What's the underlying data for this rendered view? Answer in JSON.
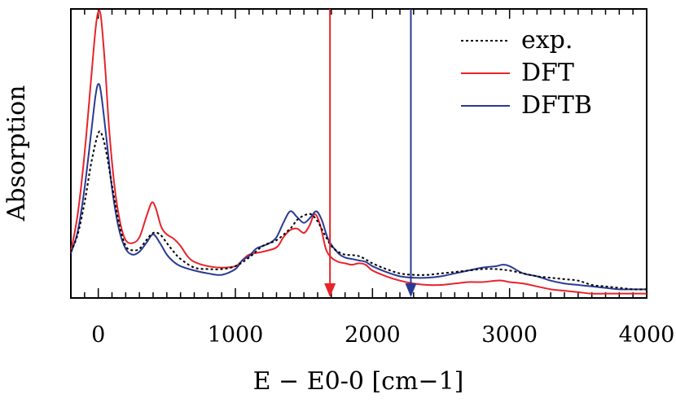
{
  "chart_data": {
    "type": "line",
    "xlabel": "E − E0-0 [cm−1]",
    "ylabel": "Absorption",
    "xlim": [
      -200,
      4000
    ],
    "ylim": [
      0,
      1
    ],
    "x_ticks": [
      0,
      1000,
      2000,
      3000,
      4000
    ],
    "x_tick_labels": [
      "0",
      "1000",
      "2000",
      "3000",
      "4000"
    ],
    "grid": false,
    "legend_position": "top-right",
    "legend": [
      "exp.",
      "DFT",
      "DFTB"
    ],
    "series": [
      {
        "name": "exp.",
        "color": "#000000",
        "style": "dotted",
        "points": [
          [
            -200,
            0.16
          ],
          [
            -150,
            0.22
          ],
          [
            -100,
            0.33
          ],
          [
            -50,
            0.47
          ],
          [
            0,
            0.57
          ],
          [
            30,
            0.56
          ],
          [
            60,
            0.5
          ],
          [
            100,
            0.39
          ],
          [
            150,
            0.26
          ],
          [
            200,
            0.18
          ],
          [
            250,
            0.165
          ],
          [
            300,
            0.17
          ],
          [
            350,
            0.2
          ],
          [
            400,
            0.225
          ],
          [
            450,
            0.22
          ],
          [
            500,
            0.19
          ],
          [
            550,
            0.16
          ],
          [
            600,
            0.135
          ],
          [
            700,
            0.105
          ],
          [
            800,
            0.1
          ],
          [
            900,
            0.1
          ],
          [
            1000,
            0.11
          ],
          [
            1100,
            0.14
          ],
          [
            1200,
            0.18
          ],
          [
            1300,
            0.2
          ],
          [
            1400,
            0.24
          ],
          [
            1450,
            0.27
          ],
          [
            1500,
            0.285
          ],
          [
            1550,
            0.29
          ],
          [
            1600,
            0.265
          ],
          [
            1650,
            0.22
          ],
          [
            1700,
            0.18
          ],
          [
            1750,
            0.16
          ],
          [
            1800,
            0.15
          ],
          [
            1900,
            0.145
          ],
          [
            2000,
            0.12
          ],
          [
            2100,
            0.1
          ],
          [
            2200,
            0.085
          ],
          [
            2300,
            0.08
          ],
          [
            2400,
            0.08
          ],
          [
            2500,
            0.085
          ],
          [
            2600,
            0.09
          ],
          [
            2700,
            0.095
          ],
          [
            2800,
            0.1
          ],
          [
            2900,
            0.1
          ],
          [
            3000,
            0.095
          ],
          [
            3100,
            0.085
          ],
          [
            3200,
            0.075
          ],
          [
            3300,
            0.07
          ],
          [
            3400,
            0.065
          ],
          [
            3500,
            0.06
          ],
          [
            3600,
            0.045
          ],
          [
            3700,
            0.04
          ],
          [
            3800,
            0.035
          ],
          [
            3900,
            0.03
          ],
          [
            4000,
            0.03
          ]
        ]
      },
      {
        "name": "DFT",
        "color": "#e8232a",
        "style": "solid",
        "points": [
          [
            -200,
            0.16
          ],
          [
            -150,
            0.29
          ],
          [
            -100,
            0.5
          ],
          [
            -50,
            0.77
          ],
          [
            -20,
            0.93
          ],
          [
            0,
            0.99
          ],
          [
            20,
            0.97
          ],
          [
            50,
            0.8
          ],
          [
            80,
            0.58
          ],
          [
            120,
            0.38
          ],
          [
            160,
            0.26
          ],
          [
            200,
            0.2
          ],
          [
            250,
            0.19
          ],
          [
            300,
            0.21
          ],
          [
            350,
            0.28
          ],
          [
            390,
            0.33
          ],
          [
            420,
            0.31
          ],
          [
            460,
            0.245
          ],
          [
            500,
            0.22
          ],
          [
            550,
            0.205
          ],
          [
            600,
            0.18
          ],
          [
            650,
            0.145
          ],
          [
            700,
            0.125
          ],
          [
            800,
            0.11
          ],
          [
            900,
            0.105
          ],
          [
            1000,
            0.11
          ],
          [
            1050,
            0.13
          ],
          [
            1100,
            0.15
          ],
          [
            1200,
            0.16
          ],
          [
            1300,
            0.175
          ],
          [
            1350,
            0.21
          ],
          [
            1400,
            0.235
          ],
          [
            1450,
            0.24
          ],
          [
            1500,
            0.225
          ],
          [
            1540,
            0.25
          ],
          [
            1580,
            0.29
          ],
          [
            1620,
            0.25
          ],
          [
            1660,
            0.17
          ],
          [
            1700,
            0.14
          ],
          [
            1750,
            0.125
          ],
          [
            1800,
            0.12
          ],
          [
            1850,
            0.115
          ],
          [
            1900,
            0.12
          ],
          [
            1950,
            0.115
          ],
          [
            2000,
            0.095
          ],
          [
            2100,
            0.075
          ],
          [
            2200,
            0.06
          ],
          [
            2300,
            0.05
          ],
          [
            2400,
            0.045
          ],
          [
            2500,
            0.045
          ],
          [
            2600,
            0.05
          ],
          [
            2700,
            0.055
          ],
          [
            2800,
            0.055
          ],
          [
            2900,
            0.06
          ],
          [
            2950,
            0.06
          ],
          [
            3000,
            0.055
          ],
          [
            3100,
            0.05
          ],
          [
            3200,
            0.04
          ],
          [
            3300,
            0.03
          ],
          [
            3400,
            0.025
          ],
          [
            3500,
            0.02
          ],
          [
            3600,
            0.015
          ],
          [
            3700,
            0.015
          ],
          [
            3800,
            0.015
          ],
          [
            3900,
            0.015
          ],
          [
            4000,
            0.015
          ]
        ]
      },
      {
        "name": "DFTB",
        "color": "#2a3a93",
        "style": "solid",
        "points": [
          [
            -200,
            0.155
          ],
          [
            -150,
            0.23
          ],
          [
            -100,
            0.38
          ],
          [
            -50,
            0.58
          ],
          [
            -20,
            0.7
          ],
          [
            0,
            0.74
          ],
          [
            20,
            0.71
          ],
          [
            60,
            0.55
          ],
          [
            100,
            0.38
          ],
          [
            150,
            0.24
          ],
          [
            200,
            0.17
          ],
          [
            250,
            0.15
          ],
          [
            300,
            0.16
          ],
          [
            350,
            0.19
          ],
          [
            400,
            0.22
          ],
          [
            450,
            0.19
          ],
          [
            500,
            0.15
          ],
          [
            550,
            0.125
          ],
          [
            600,
            0.11
          ],
          [
            700,
            0.095
          ],
          [
            800,
            0.085
          ],
          [
            900,
            0.08
          ],
          [
            1000,
            0.1
          ],
          [
            1050,
            0.13
          ],
          [
            1100,
            0.145
          ],
          [
            1150,
            0.17
          ],
          [
            1200,
            0.18
          ],
          [
            1250,
            0.19
          ],
          [
            1300,
            0.21
          ],
          [
            1350,
            0.26
          ],
          [
            1400,
            0.3
          ],
          [
            1450,
            0.28
          ],
          [
            1500,
            0.26
          ],
          [
            1550,
            0.28
          ],
          [
            1590,
            0.3
          ],
          [
            1630,
            0.27
          ],
          [
            1680,
            0.2
          ],
          [
            1750,
            0.155
          ],
          [
            1800,
            0.14
          ],
          [
            1850,
            0.135
          ],
          [
            1900,
            0.13
          ],
          [
            1950,
            0.125
          ],
          [
            2000,
            0.11
          ],
          [
            2100,
            0.09
          ],
          [
            2200,
            0.075
          ],
          [
            2300,
            0.07
          ],
          [
            2400,
            0.07
          ],
          [
            2500,
            0.075
          ],
          [
            2600,
            0.085
          ],
          [
            2700,
            0.095
          ],
          [
            2800,
            0.105
          ],
          [
            2900,
            0.11
          ],
          [
            2950,
            0.115
          ],
          [
            3000,
            0.11
          ],
          [
            3100,
            0.085
          ],
          [
            3200,
            0.075
          ],
          [
            3300,
            0.06
          ],
          [
            3400,
            0.05
          ],
          [
            3500,
            0.045
          ],
          [
            3600,
            0.04
          ],
          [
            3700,
            0.035
          ],
          [
            3800,
            0.03
          ],
          [
            3900,
            0.03
          ],
          [
            4000,
            0.03
          ]
        ]
      }
    ],
    "markers": [
      {
        "name": "DFT",
        "x": 1690,
        "color": "#e8232a",
        "direction": "down"
      },
      {
        "name": "DFTB",
        "x": 2280,
        "color": "#2a3a93",
        "direction": "down"
      }
    ]
  }
}
